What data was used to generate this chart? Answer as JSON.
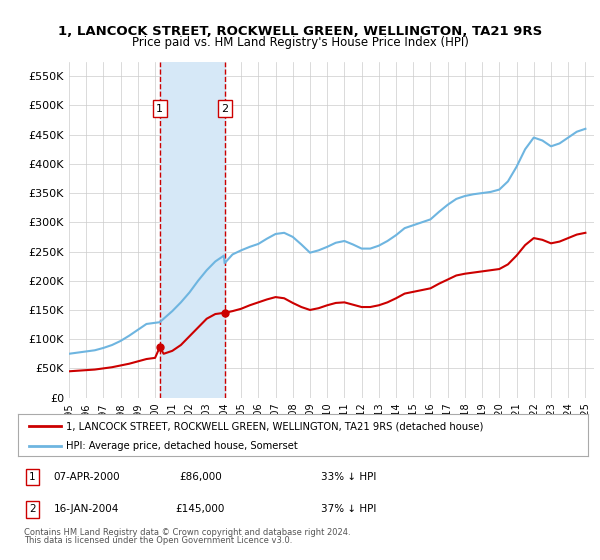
{
  "title": "1, LANCOCK STREET, ROCKWELL GREEN, WELLINGTON, TA21 9RS",
  "subtitle": "Price paid vs. HM Land Registry's House Price Index (HPI)",
  "legend_line1": "1, LANCOCK STREET, ROCKWELL GREEN, WELLINGTON, TA21 9RS (detached house)",
  "legend_line2": "HPI: Average price, detached house, Somerset",
  "footnote1": "Contains HM Land Registry data © Crown copyright and database right 2024.",
  "footnote2": "This data is licensed under the Open Government Licence v3.0.",
  "transactions": [
    {
      "label": "1",
      "date": "07-APR-2000",
      "price": 86000,
      "pct": "33% ↓ HPI",
      "x": 2000.27
    },
    {
      "label": "2",
      "date": "16-JAN-2004",
      "price": 145000,
      "pct": "37% ↓ HPI",
      "x": 2004.04
    }
  ],
  "hpi_color": "#6eb5e0",
  "price_color": "#cc0000",
  "shade_color": "#d6e8f7",
  "grid_color": "#cccccc",
  "background_color": "#ffffff",
  "ylim": [
    0,
    575000
  ],
  "xlim": [
    1995,
    2025.5
  ],
  "yticks": [
    0,
    50000,
    100000,
    150000,
    200000,
    250000,
    300000,
    350000,
    400000,
    450000,
    500000,
    550000
  ],
  "xticks": [
    1995,
    1996,
    1997,
    1998,
    1999,
    2000,
    2001,
    2002,
    2003,
    2004,
    2005,
    2006,
    2007,
    2008,
    2009,
    2010,
    2011,
    2012,
    2013,
    2014,
    2015,
    2016,
    2017,
    2018,
    2019,
    2020,
    2021,
    2022,
    2023,
    2024,
    2025
  ],
  "hpi_data": {
    "x": [
      1995,
      1995.5,
      1996,
      1996.5,
      1997,
      1997.5,
      1998,
      1998.5,
      1999,
      1999.5,
      2000,
      2000.27,
      2000.5,
      2001,
      2001.5,
      2002,
      2002.5,
      2003,
      2003.5,
      2004,
      2004.04,
      2004.5,
      2005,
      2005.5,
      2006,
      2006.5,
      2007,
      2007.5,
      2008,
      2008.5,
      2009,
      2009.5,
      2010,
      2010.5,
      2011,
      2011.5,
      2012,
      2012.5,
      2013,
      2013.5,
      2014,
      2014.5,
      2015,
      2015.5,
      2016,
      2016.5,
      2017,
      2017.5,
      2018,
      2018.5,
      2019,
      2019.5,
      2020,
      2020.5,
      2021,
      2021.5,
      2022,
      2022.5,
      2023,
      2023.5,
      2024,
      2024.5,
      2025
    ],
    "y": [
      75000,
      77000,
      79000,
      81000,
      85000,
      90000,
      97000,
      106000,
      116000,
      126000,
      128000,
      129000,
      135000,
      148000,
      163000,
      180000,
      200000,
      218000,
      233000,
      243000,
      230000,
      245000,
      252000,
      258000,
      263000,
      272000,
      280000,
      282000,
      275000,
      262000,
      248000,
      252000,
      258000,
      265000,
      268000,
      262000,
      255000,
      255000,
      260000,
      268000,
      278000,
      290000,
      295000,
      300000,
      305000,
      318000,
      330000,
      340000,
      345000,
      348000,
      350000,
      352000,
      356000,
      370000,
      395000,
      425000,
      445000,
      440000,
      430000,
      435000,
      445000,
      455000,
      460000
    ]
  },
  "price_data": {
    "x": [
      1995,
      1995.5,
      1996,
      1996.5,
      1997,
      1997.5,
      1998,
      1998.5,
      1999,
      1999.5,
      2000,
      2000.27,
      2000.5,
      2001,
      2001.5,
      2002,
      2002.5,
      2003,
      2003.5,
      2004,
      2004.04,
      2004.5,
      2005,
      2005.5,
      2006,
      2006.5,
      2007,
      2007.5,
      2008,
      2008.5,
      2009,
      2009.5,
      2010,
      2010.5,
      2011,
      2011.5,
      2012,
      2012.5,
      2013,
      2013.5,
      2014,
      2014.5,
      2015,
      2015.5,
      2016,
      2016.5,
      2017,
      2017.5,
      2018,
      2018.5,
      2019,
      2019.5,
      2020,
      2020.5,
      2021,
      2021.5,
      2022,
      2022.5,
      2023,
      2023.5,
      2024,
      2024.5,
      2025
    ],
    "y": [
      45000,
      46000,
      47000,
      48000,
      50000,
      52000,
      55000,
      58000,
      62000,
      66000,
      68000,
      86000,
      75000,
      80000,
      90000,
      105000,
      120000,
      135000,
      143000,
      145000,
      145000,
      148000,
      152000,
      158000,
      163000,
      168000,
      172000,
      170000,
      162000,
      155000,
      150000,
      153000,
      158000,
      162000,
      163000,
      159000,
      155000,
      155000,
      158000,
      163000,
      170000,
      178000,
      181000,
      184000,
      187000,
      195000,
      202000,
      209000,
      212000,
      214000,
      216000,
      218000,
      220000,
      228000,
      243000,
      261000,
      273000,
      270000,
      264000,
      267000,
      273000,
      279000,
      282000
    ]
  }
}
